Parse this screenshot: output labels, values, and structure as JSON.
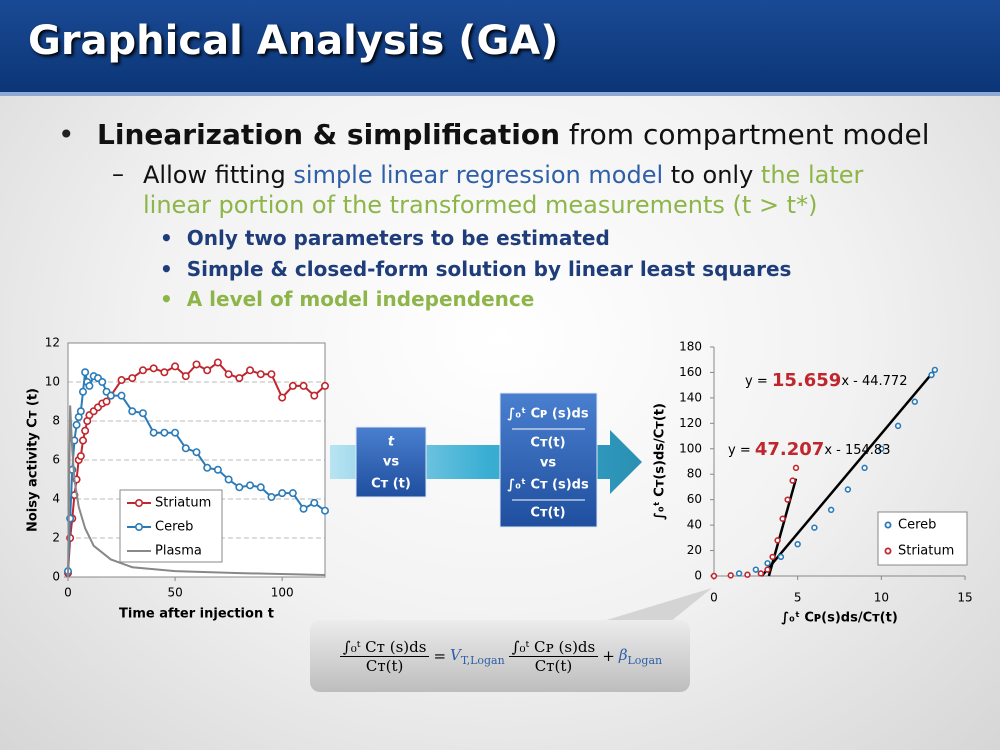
{
  "slide": {
    "title": "Graphical Analysis (GA)",
    "bullet": {
      "bold": "Linearization & simplification",
      "rest": "from compartment model"
    },
    "sub_bullet": [
      "Allow fitting",
      "simple linear regression model",
      "to only",
      "the later linear portion of the transformed measurements (t > t*)"
    ],
    "sub_sub_bullets": [
      "Only two parameters to be estimated",
      "Simple & closed-form solution by linear least squares",
      "A level of model independence"
    ],
    "flow": {
      "box1": [
        "t",
        "vs",
        "Cᴛ (t)"
      ],
      "box2": [
        "∫₀ᵗ Cᴘ (s)ds",
        "Cᴛ(t)",
        "vs",
        "∫₀ᵗ Cᴛ (s)ds",
        "Cᴛ(t)"
      ]
    },
    "equation": {
      "lhs_num": "∫₀ᵗ Cᴛ (s)ds",
      "lhs_den": "Cᴛ(t)",
      "equals": "=",
      "slope_symbol": "V",
      "slope_sub": "T,Logan",
      "rhs_num": "∫₀ᵗ Cᴘ (s)ds",
      "rhs_den": "Cᴛ(t)",
      "plus": "+",
      "intercept_symbol": "β",
      "intercept_sub": "Logan"
    }
  },
  "chart_data": [
    {
      "type": "line",
      "ylabel": "Noisy activity Cᴛ (t)",
      "xlabel": "Time after injection t",
      "xlim": [
        0,
        120
      ],
      "xticks": [
        0,
        50,
        100
      ],
      "ylim": [
        0,
        12
      ],
      "yticks": [
        0,
        2,
        4,
        6,
        8,
        10,
        12
      ],
      "grid": true,
      "series": [
        {
          "name": "Striatum",
          "color": "#c0262d",
          "marker": true,
          "x": [
            0,
            1,
            2,
            3,
            4,
            5,
            6,
            7,
            8,
            9,
            10,
            12,
            14,
            16,
            18,
            20,
            25,
            30,
            35,
            40,
            45,
            50,
            55,
            60,
            65,
            70,
            75,
            80,
            85,
            90,
            95,
            100,
            105,
            110,
            115,
            120
          ],
          "values": [
            0.2,
            2,
            3,
            4.2,
            5,
            6,
            6.2,
            7,
            7.5,
            8,
            8.3,
            8.5,
            8.7,
            8.9,
            9,
            9.3,
            10.1,
            10.2,
            10.6,
            10.7,
            10.5,
            10.8,
            10.3,
            10.9,
            10.6,
            11,
            10.4,
            10.2,
            10.6,
            10.4,
            10.4,
            9.2,
            9.8,
            9.8,
            9.3,
            9.8
          ]
        },
        {
          "name": "Cereb",
          "color": "#2b7bb9",
          "marker": true,
          "x": [
            0,
            1,
            2,
            3,
            4,
            5,
            6,
            7,
            8,
            9,
            10,
            12,
            14,
            16,
            18,
            20,
            25,
            30,
            35,
            40,
            45,
            50,
            55,
            60,
            65,
            70,
            75,
            80,
            85,
            90,
            95,
            100,
            105,
            110,
            115,
            120
          ],
          "values": [
            0.3,
            3,
            5.5,
            7,
            7.8,
            8.2,
            8.5,
            9.5,
            10.5,
            10,
            9.8,
            10.3,
            10.2,
            10,
            9.5,
            9.3,
            9.3,
            8.5,
            8.4,
            7.4,
            7.4,
            7.4,
            6.6,
            6.4,
            5.6,
            5.5,
            5,
            4.6,
            4.7,
            4.6,
            4.1,
            4.3,
            4.3,
            3.5,
            3.8,
            3.4
          ]
        },
        {
          "name": "Plasma",
          "color": "#888888",
          "marker": false,
          "x": [
            0,
            1,
            2,
            3,
            5,
            8,
            12,
            20,
            30,
            50,
            80,
            120
          ],
          "values": [
            0,
            8.8,
            6.5,
            5,
            3.6,
            2.5,
            1.6,
            0.9,
            0.5,
            0.3,
            0.2,
            0.1
          ]
        }
      ]
    },
    {
      "type": "scatter",
      "ylabel": "∫₀ᵗ Cᴛ(s)ds/Cᴛ(t)",
      "xlabel": "∫₀ᵗ Cᴘ(s)ds/Cᴛ(t)",
      "xlim": [
        0,
        15
      ],
      "xticks": [
        0,
        5,
        10,
        15
      ],
      "ylim": [
        0,
        180
      ],
      "yticks": [
        0,
        20,
        40,
        60,
        80,
        100,
        120,
        140,
        160,
        180
      ],
      "grid": false,
      "series": [
        {
          "name": "Cereb",
          "color": "#2b7bb9",
          "x": [
            1.5,
            2.5,
            3.2,
            4,
            5,
            6,
            7,
            8,
            9,
            10,
            11,
            12,
            13,
            13.2
          ],
          "values": [
            2,
            5,
            10,
            15,
            25,
            38,
            52,
            68,
            85,
            100,
            118,
            137,
            158,
            162
          ]
        },
        {
          "name": "Striatum",
          "color": "#c0262d",
          "x": [
            0,
            1,
            2,
            2.8,
            3.2,
            3.5,
            3.8,
            4.1,
            4.4,
            4.7,
            4.9
          ],
          "values": [
            0,
            0.5,
            1,
            2,
            5,
            15,
            28,
            45,
            60,
            75,
            85
          ]
        }
      ],
      "annotations": [
        {
          "prefix": "y = ",
          "slope": 15.659,
          "intercept": -44.772,
          "intercept_label": "x - 44.772"
        },
        {
          "prefix": "y = ",
          "slope": 47.207,
          "intercept": -154.83,
          "intercept_label": "x - 154.83"
        }
      ]
    }
  ]
}
